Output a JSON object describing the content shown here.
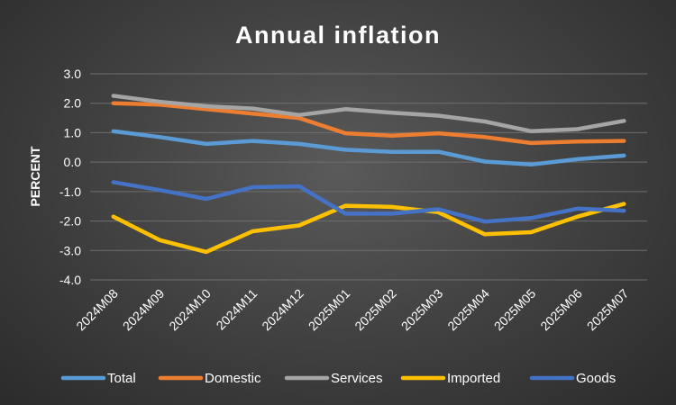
{
  "chart_data": {
    "type": "line",
    "title": "Annual inflation",
    "xlabel": "",
    "ylabel": "PERCENT",
    "ylim": [
      -4.0,
      3.0
    ],
    "yticks": [
      "3.0",
      "2.0",
      "1.0",
      "0.0",
      "-1.0",
      "-2.0",
      "-3.0",
      "-4.0"
    ],
    "grid": true,
    "legend_position": "bottom",
    "categories": [
      "2024M08",
      "2024M09",
      "2024M10",
      "2024M11",
      "2024M12",
      "2025M01",
      "2025M02",
      "2025M03",
      "2025M04",
      "2025M05",
      "2025M06",
      "2025M07"
    ],
    "series": [
      {
        "name": "Total",
        "color": "#5b9bd5",
        "values": [
          1.05,
          0.85,
          0.62,
          0.72,
          0.62,
          0.42,
          0.35,
          0.35,
          0.02,
          -0.08,
          0.1,
          0.22
        ]
      },
      {
        "name": "Domestic",
        "color": "#ed7d31",
        "values": [
          2.0,
          1.95,
          1.8,
          1.65,
          1.5,
          0.98,
          0.9,
          0.98,
          0.85,
          0.65,
          0.7,
          0.72
        ]
      },
      {
        "name": "Services",
        "color": "#a5a5a5",
        "values": [
          2.25,
          2.05,
          1.9,
          1.82,
          1.6,
          1.8,
          1.68,
          1.58,
          1.38,
          1.05,
          1.12,
          1.4
        ]
      },
      {
        "name": "Imported",
        "color": "#ffc000",
        "values": [
          -1.85,
          -2.65,
          -3.05,
          -2.35,
          -2.15,
          -1.48,
          -1.52,
          -1.7,
          -2.45,
          -2.38,
          -1.85,
          -1.42
        ]
      },
      {
        "name": "Goods",
        "color": "#4472c4",
        "values": [
          -0.68,
          -0.95,
          -1.25,
          -0.85,
          -0.82,
          -1.75,
          -1.75,
          -1.6,
          -2.02,
          -1.9,
          -1.58,
          -1.65
        ]
      }
    ]
  }
}
